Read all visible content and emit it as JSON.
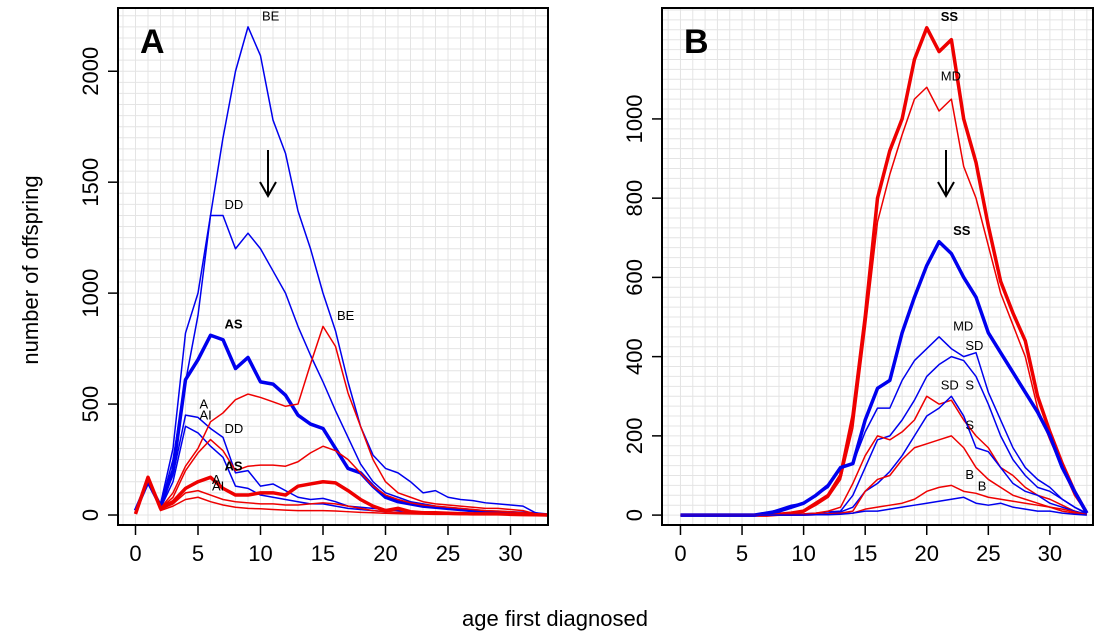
{
  "chart_data": [
    {
      "type": "line",
      "title": "A",
      "ylabel": "number of offspring",
      "xlabel": "age first diagnosed",
      "xlim": [
        -1.4,
        33.0
      ],
      "ylim": [
        -45,
        2285
      ],
      "xticks": [
        0,
        5,
        10,
        15,
        20,
        25,
        30
      ],
      "yticks": [
        0,
        500,
        1000,
        1500,
        2000
      ],
      "grid": true,
      "x": [
        0,
        1,
        2,
        3,
        4,
        5,
        6,
        7,
        8,
        9,
        10,
        11,
        12,
        13,
        14,
        15,
        16,
        17,
        18,
        19,
        20,
        21,
        22,
        23,
        24,
        25,
        26,
        27,
        28,
        29,
        30,
        31,
        32,
        33
      ],
      "series": [
        {
          "name": "BE",
          "color": "#0000ee",
          "bold": false,
          "values": [
            20,
            160,
            50,
            300,
            820,
            1000,
            1350,
            1700,
            2000,
            2200,
            2070,
            1780,
            1630,
            1370,
            1200,
            1000,
            830,
            600,
            400,
            270,
            210,
            190,
            150,
            100,
            110,
            80,
            70,
            65,
            55,
            50,
            45,
            40,
            10,
            0
          ]
        },
        {
          "name": "DD",
          "color": "#0000ee",
          "bold": false,
          "values": [
            20,
            150,
            40,
            250,
            600,
            900,
            1350,
            1350,
            1200,
            1270,
            1200,
            1100,
            1000,
            850,
            720,
            600,
            470,
            350,
            230,
            150,
            100,
            80,
            60,
            50,
            40,
            30,
            25,
            20,
            15,
            12,
            10,
            8,
            5,
            0
          ]
        },
        {
          "name": "AS",
          "color": "#0000ee",
          "bold": true,
          "values": [
            20,
            150,
            40,
            200,
            610,
            700,
            810,
            790,
            660,
            710,
            600,
            590,
            540,
            450,
            410,
            390,
            300,
            210,
            190,
            130,
            80,
            60,
            50,
            40,
            35,
            30,
            25,
            20,
            15,
            12,
            10,
            8,
            5,
            0
          ]
        },
        {
          "name": "A",
          "color": "#0000ee",
          "bold": false,
          "values": [
            20,
            150,
            40,
            180,
            450,
            440,
            390,
            350,
            190,
            200,
            130,
            140,
            110,
            80,
            70,
            75,
            60,
            40,
            35,
            30,
            25,
            20,
            15,
            12,
            10,
            8,
            6,
            5,
            4,
            3,
            2,
            2,
            1,
            0
          ]
        },
        {
          "name": "AI",
          "color": "#0000ee",
          "bold": false,
          "values": [
            20,
            150,
            30,
            150,
            400,
            370,
            310,
            260,
            130,
            120,
            90,
            80,
            70,
            60,
            50,
            50,
            40,
            30,
            25,
            20,
            15,
            12,
            10,
            8,
            6,
            5,
            4,
            3,
            3,
            2,
            2,
            1,
            1,
            0
          ]
        },
        {
          "name": "BE",
          "color": "#ee0000",
          "bold": false,
          "values": [
            5,
            170,
            30,
            100,
            220,
            300,
            420,
            460,
            520,
            545,
            530,
            510,
            490,
            500,
            680,
            850,
            760,
            550,
            400,
            250,
            150,
            100,
            80,
            60,
            50,
            45,
            40,
            35,
            30,
            30,
            25,
            20,
            5,
            0
          ]
        },
        {
          "name": "DD",
          "color": "#ee0000",
          "bold": false,
          "values": [
            5,
            170,
            30,
            80,
            200,
            280,
            340,
            290,
            200,
            220,
            225,
            225,
            220,
            240,
            280,
            310,
            290,
            250,
            190,
            130,
            90,
            70,
            55,
            45,
            40,
            35,
            30,
            25,
            20,
            18,
            15,
            10,
            5,
            0
          ]
        },
        {
          "name": "AS",
          "color": "#ee0000",
          "bold": true,
          "values": [
            5,
            170,
            30,
            60,
            120,
            150,
            170,
            120,
            90,
            90,
            100,
            100,
            90,
            130,
            140,
            150,
            145,
            110,
            70,
            40,
            20,
            30,
            15,
            10,
            10,
            8,
            6,
            5,
            5,
            5,
            3,
            2,
            1,
            0
          ]
        },
        {
          "name": "A",
          "color": "#ee0000",
          "bold": false,
          "values": [
            5,
            170,
            25,
            50,
            100,
            110,
            90,
            70,
            60,
            55,
            50,
            50,
            45,
            45,
            50,
            55,
            50,
            40,
            30,
            20,
            15,
            12,
            10,
            8,
            6,
            5,
            4,
            3,
            3,
            2,
            2,
            1,
            1,
            0
          ]
        },
        {
          "name": "AI",
          "color": "#ee0000",
          "bold": false,
          "values": [
            5,
            170,
            20,
            40,
            70,
            80,
            60,
            45,
            35,
            30,
            28,
            25,
            22,
            20,
            20,
            20,
            18,
            15,
            12,
            10,
            8,
            6,
            5,
            4,
            3,
            3,
            2,
            2,
            1,
            1,
            1,
            0,
            0,
            0
          ]
        }
      ]
    },
    {
      "type": "line",
      "title": "B",
      "xlim": [
        -1.5,
        33.5
      ],
      "ylim": [
        -25,
        1280
      ],
      "xticks": [
        0,
        5,
        10,
        15,
        20,
        25,
        30
      ],
      "yticks": [
        0,
        200,
        400,
        600,
        800,
        1000
      ],
      "grid": true,
      "x": [
        0,
        1,
        2,
        3,
        4,
        5,
        6,
        7,
        8,
        9,
        10,
        11,
        12,
        13,
        14,
        15,
        16,
        17,
        18,
        19,
        20,
        21,
        22,
        23,
        24,
        25,
        26,
        27,
        28,
        29,
        30,
        31,
        32,
        33
      ],
      "series": [
        {
          "name": "SS",
          "color": "#ee0000",
          "bold": true,
          "values": [
            0,
            0,
            0,
            0,
            0,
            0,
            0,
            0,
            2,
            5,
            10,
            30,
            50,
            100,
            250,
            500,
            800,
            920,
            1000,
            1150,
            1230,
            1170,
            1200,
            1000,
            890,
            730,
            590,
            510,
            440,
            300,
            210,
            130,
            60,
            5
          ]
        },
        {
          "name": "MD",
          "color": "#ee0000",
          "bold": false,
          "values": [
            0,
            0,
            0,
            0,
            0,
            0,
            0,
            0,
            2,
            4,
            8,
            25,
            45,
            90,
            220,
            470,
            740,
            860,
            960,
            1050,
            1080,
            1020,
            1050,
            880,
            800,
            680,
            560,
            480,
            400,
            270,
            190,
            120,
            50,
            5
          ]
        },
        {
          "name": "SS",
          "color": "#0000ee",
          "bold": true,
          "values": [
            0,
            0,
            0,
            0,
            0,
            0,
            0,
            5,
            10,
            20,
            30,
            50,
            75,
            120,
            130,
            240,
            320,
            340,
            460,
            550,
            630,
            690,
            660,
            600,
            550,
            460,
            410,
            360,
            310,
            260,
            200,
            120,
            60,
            5
          ]
        },
        {
          "name": "MD",
          "color": "#0000ee",
          "bold": false,
          "values": [
            0,
            0,
            0,
            0,
            0,
            0,
            0,
            5,
            15,
            25,
            30,
            50,
            70,
            120,
            130,
            210,
            270,
            270,
            340,
            390,
            420,
            450,
            420,
            400,
            410,
            310,
            240,
            170,
            120,
            90,
            70,
            40,
            20,
            5
          ]
        },
        {
          "name": "SD",
          "color": "#0000ee",
          "bold": false,
          "values": [
            0,
            0,
            0,
            0,
            0,
            0,
            0,
            0,
            0,
            2,
            3,
            5,
            8,
            10,
            50,
            120,
            190,
            200,
            240,
            290,
            350,
            380,
            400,
            390,
            350,
            280,
            200,
            140,
            100,
            70,
            60,
            40,
            20,
            3
          ]
        },
        {
          "name": "SD",
          "color": "#ee0000",
          "bold": false,
          "values": [
            0,
            0,
            0,
            0,
            0,
            0,
            0,
            0,
            0,
            2,
            3,
            5,
            10,
            20,
            80,
            150,
            200,
            190,
            210,
            240,
            300,
            280,
            290,
            240,
            200,
            170,
            120,
            100,
            70,
            50,
            40,
            25,
            10,
            2
          ]
        },
        {
          "name": "S",
          "color": "#0000ee",
          "bold": false,
          "values": [
            0,
            0,
            0,
            0,
            0,
            0,
            0,
            0,
            0,
            0,
            1,
            2,
            4,
            8,
            20,
            60,
            80,
            110,
            150,
            200,
            250,
            270,
            300,
            250,
            170,
            160,
            120,
            80,
            60,
            50,
            30,
            20,
            10,
            2
          ]
        },
        {
          "name": "S",
          "color": "#ee0000",
          "bold": false,
          "values": [
            0,
            0,
            0,
            0,
            0,
            0,
            0,
            0,
            0,
            0,
            1,
            2,
            3,
            5,
            10,
            60,
            90,
            100,
            140,
            170,
            180,
            190,
            200,
            170,
            120,
            90,
            70,
            50,
            40,
            30,
            20,
            15,
            8,
            1
          ]
        },
        {
          "name": "B",
          "color": "#ee0000",
          "bold": false,
          "values": [
            0,
            0,
            0,
            0,
            0,
            0,
            0,
            0,
            0,
            0,
            0,
            1,
            2,
            3,
            5,
            15,
            20,
            25,
            30,
            40,
            60,
            70,
            75,
            60,
            55,
            45,
            40,
            35,
            30,
            25,
            20,
            10,
            5,
            1
          ]
        },
        {
          "name": "B",
          "color": "#0000ee",
          "bold": false,
          "values": [
            0,
            0,
            0,
            0,
            0,
            0,
            0,
            0,
            0,
            0,
            0,
            1,
            1,
            2,
            5,
            10,
            10,
            15,
            20,
            25,
            30,
            35,
            40,
            45,
            30,
            25,
            30,
            20,
            15,
            10,
            10,
            5,
            2,
            0
          ]
        }
      ]
    }
  ]
}
